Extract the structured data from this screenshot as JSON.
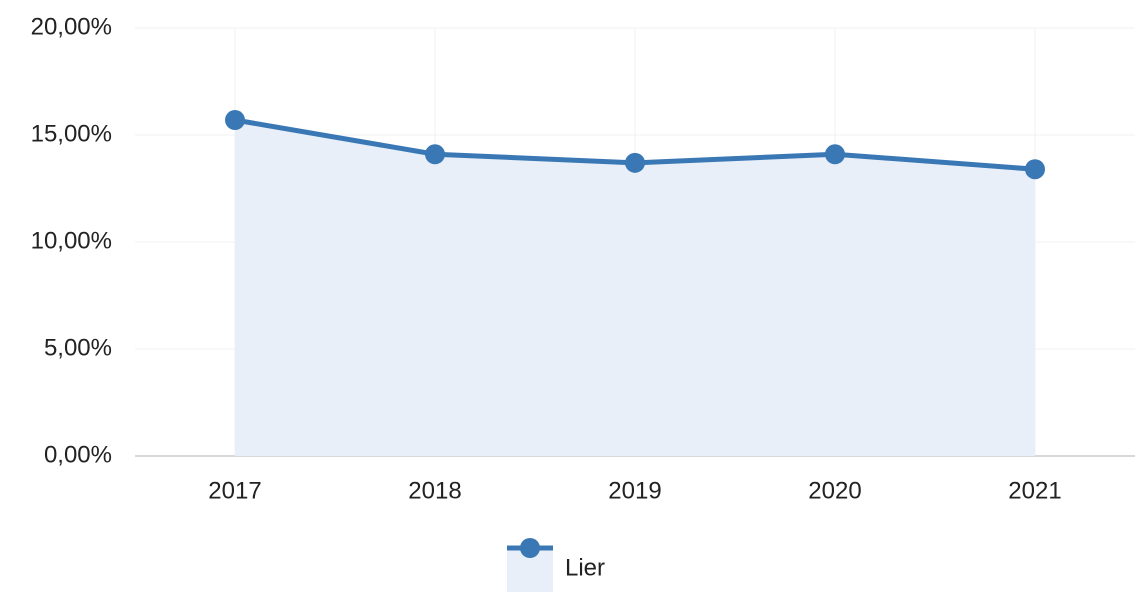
{
  "chart_data": {
    "type": "line",
    "categories": [
      "2017",
      "2018",
      "2019",
      "2020",
      "2021"
    ],
    "series": [
      {
        "name": "Lier",
        "color": "#3a78b5",
        "fill": "#e8eff8",
        "values": [
          15.7,
          14.1,
          13.7,
          14.1,
          13.4
        ]
      }
    ],
    "ylim": [
      0,
      20
    ],
    "yticks": [
      {
        "value": 0,
        "label": "0,00%"
      },
      {
        "value": 5,
        "label": "5,00%"
      },
      {
        "value": 10,
        "label": "10,00%"
      },
      {
        "value": 15,
        "label": "15,00%"
      },
      {
        "value": 20,
        "label": "20,00%"
      }
    ],
    "grid": true,
    "legend": "bottom"
  }
}
